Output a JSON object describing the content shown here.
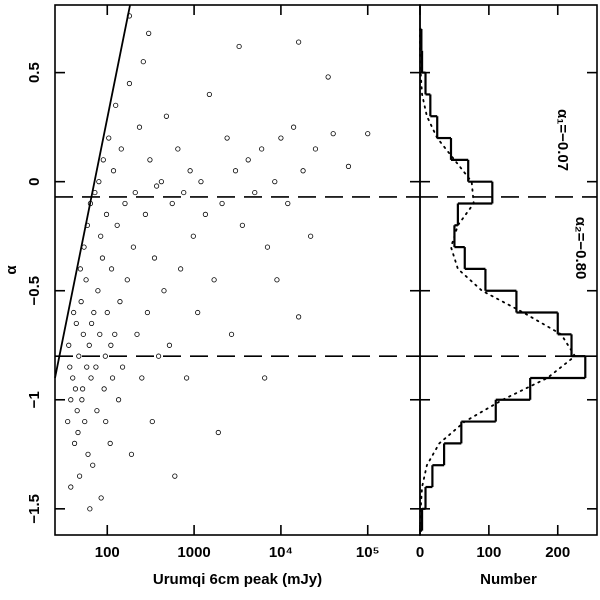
{
  "chart_data": [
    {
      "type": "scatter",
      "x_label": "Urumqi 6cm peak (mJy)",
      "y_label": "α",
      "xlog": true,
      "xlim": [
        25,
        400000
      ],
      "ylim": [
        -1.62,
        0.81
      ],
      "xticks": [
        100,
        1000,
        {
          "value": 10000,
          "label": "10⁴"
        },
        {
          "value": 100000,
          "label": "10⁵"
        }
      ],
      "yticks": [
        0.5,
        0,
        {
          "value": -0.5,
          "label": "−0.5"
        },
        {
          "value": -1,
          "label": "−1"
        },
        {
          "value": -1.5,
          "label": "−1.5"
        }
      ],
      "hlines": [
        -0.07,
        -0.8
      ],
      "limit_line": {
        "x": [
          25,
          183
        ],
        "y": [
          -0.9,
          0.81
        ]
      },
      "color": "#000000",
      "x": [
        36,
        38,
        40,
        42,
        44,
        45,
        47,
        48,
        50,
        52,
        53,
        55,
        57,
        58,
        60,
        38,
        41,
        46,
        49,
        54,
        59,
        35,
        37,
        43,
        51,
        62,
        64,
        65,
        68,
        70,
        72,
        74,
        76,
        78,
        80,
        82,
        85,
        88,
        90,
        92,
        95,
        98,
        100,
        104,
        108,
        112,
        115,
        118,
        66,
        84,
        96,
        110,
        63,
        122,
        125,
        130,
        135,
        140,
        145,
        150,
        160,
        170,
        180,
        190,
        200,
        210,
        220,
        235,
        250,
        260,
        275,
        290,
        310,
        330,
        350,
        370,
        390,
        180,
        300,
        420,
        450,
        480,
        520,
        560,
        600,
        650,
        700,
        760,
        820,
        900,
        980,
        1100,
        1200,
        1350,
        1500,
        1700,
        1900,
        2100,
        2400,
        2700,
        3000,
        3300,
        3600,
        4200,
        5000,
        6000,
        7000,
        8500,
        10000,
        12000,
        14000,
        16000,
        18000,
        25000,
        35000,
        60000,
        100000,
        40000,
        16000,
        22000,
        6500,
        9000
      ],
      "y": [
        -0.75,
        -1.0,
        -0.9,
        -1.2,
        -0.65,
        -1.05,
        -0.8,
        -1.35,
        -0.55,
        -0.95,
        -0.7,
        -1.1,
        -0.45,
        -0.85,
        -1.25,
        -1.4,
        -0.6,
        -1.15,
        -0.4,
        -0.3,
        -0.2,
        -1.1,
        -0.85,
        -0.95,
        -1.0,
        -0.75,
        -0.1,
        -0.9,
        -1.3,
        -0.6,
        -0.05,
        -0.85,
        -1.05,
        -0.5,
        0,
        -0.7,
        -1.45,
        -0.35,
        0.1,
        -0.95,
        -0.8,
        -0.15,
        -0.6,
        0.2,
        -1.2,
        -0.4,
        -0.9,
        0.05,
        -0.65,
        -0.25,
        -1.1,
        -0.75,
        -1.5,
        -0.7,
        0.35,
        -0.2,
        -1.0,
        -0.55,
        0.15,
        -0.85,
        -0.1,
        -0.45,
        0.45,
        -1.25,
        -0.3,
        -0.05,
        -0.7,
        0.25,
        -0.9,
        0.55,
        -0.15,
        -0.6,
        0.1,
        -1.1,
        -0.35,
        -0.02,
        -0.8,
        0.76,
        0.68,
        0,
        -0.5,
        0.3,
        -0.75,
        -0.1,
        -1.35,
        0.15,
        -0.4,
        -0.05,
        -0.9,
        0.05,
        -0.25,
        -0.6,
        0,
        -0.15,
        0.4,
        -0.45,
        -1.15,
        -0.1,
        0.2,
        -0.7,
        0.05,
        0.62,
        -0.2,
        0.1,
        -0.05,
        0.15,
        -0.3,
        0,
        0.2,
        -0.1,
        0.25,
        -0.62,
        0.05,
        0.15,
        0.48,
        0.07,
        0.22,
        0.22,
        0.64,
        -0.25,
        -0.9,
        -0.45
      ]
    },
    {
      "type": "histogram",
      "x_label": "Number",
      "orientation": "horizontal",
      "xlim": [
        0,
        257
      ],
      "ylim": [
        -1.62,
        0.81
      ],
      "xticks": [
        0,
        100,
        200
      ],
      "yticks": [
        0.5,
        0,
        -0.5,
        -1,
        -1.5
      ],
      "show_ytick_labels": false,
      "hlines": [
        -0.07,
        -0.8
      ],
      "color": "#000000",
      "bins": [
        -1.6,
        -1.5,
        -1.4,
        -1.3,
        -1.2,
        -1.1,
        -1.0,
        -0.9,
        -0.8,
        -0.7,
        -0.6,
        -0.5,
        -0.4,
        -0.3,
        -0.2,
        -0.1,
        0,
        0.1,
        0.2,
        0.3,
        0.4,
        0.5,
        0.6,
        0.7
      ],
      "counts": [
        3,
        8,
        18,
        35,
        60,
        110,
        160,
        240,
        220,
        200,
        140,
        95,
        65,
        50,
        55,
        105,
        70,
        45,
        25,
        15,
        8,
        3,
        2
      ],
      "fit": {
        "alpha": [
          -1.6,
          -1.5,
          -1.4,
          -1.3,
          -1.2,
          -1.1,
          -1.0,
          -0.9,
          -0.8,
          -0.7,
          -0.6,
          -0.5,
          -0.4,
          -0.3,
          -0.2,
          -0.1,
          0,
          0.1,
          0.2,
          0.3,
          0.4,
          0.5,
          0.6,
          0.7
        ],
        "counts": [
          0,
          1,
          3,
          10,
          28,
          65,
          120,
          185,
          225,
          205,
          150,
          90,
          55,
          45,
          55,
          78,
          75,
          50,
          25,
          10,
          3,
          1,
          0,
          0
        ]
      },
      "annotations": [
        {
          "text": "α₁=−0.07"
        },
        {
          "text": "α₂=−0.80"
        }
      ]
    }
  ]
}
